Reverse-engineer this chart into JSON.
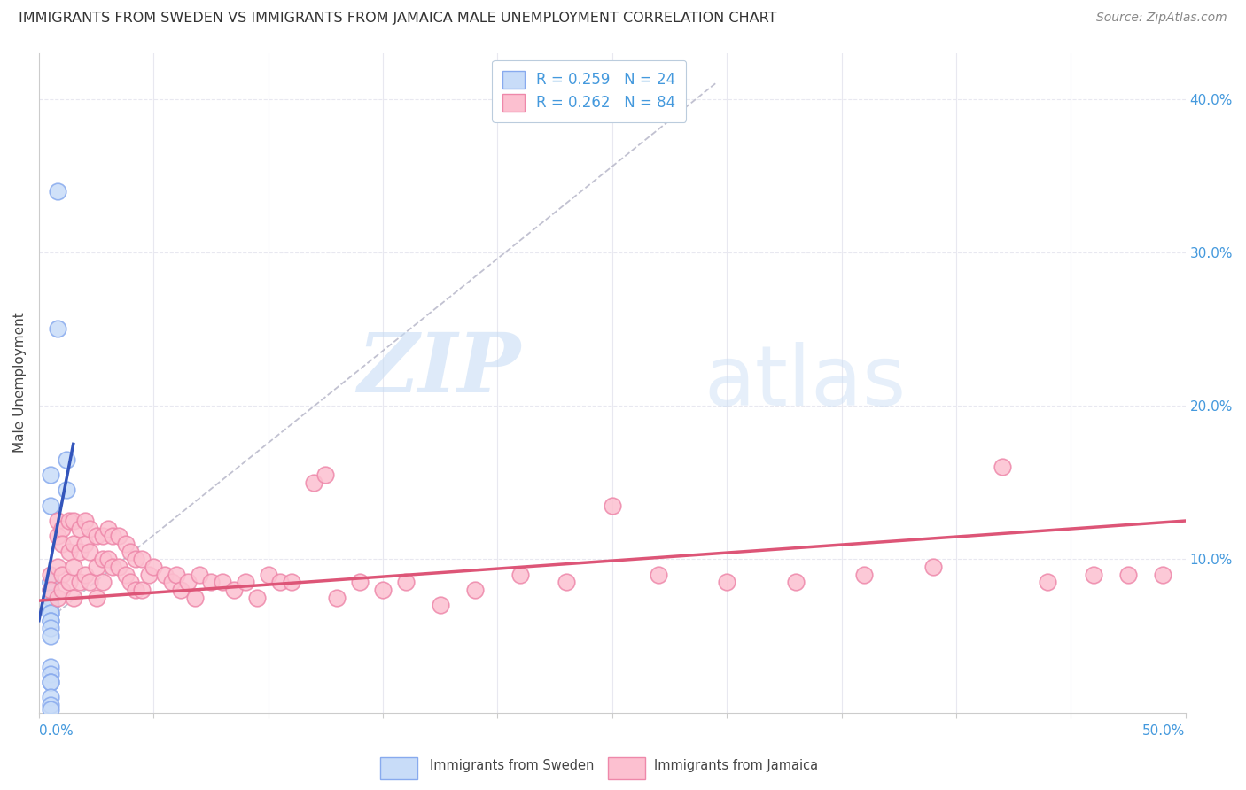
{
  "title": "IMMIGRANTS FROM SWEDEN VS IMMIGRANTS FROM JAMAICA MALE UNEMPLOYMENT CORRELATION CHART",
  "source": "Source: ZipAtlas.com",
  "ylabel": "Male Unemployment",
  "ylabel_right_ticks": [
    "10.0%",
    "20.0%",
    "30.0%",
    "40.0%"
  ],
  "ylabel_right_vals": [
    0.1,
    0.2,
    0.3,
    0.4
  ],
  "xlim": [
    0.0,
    0.5
  ],
  "ylim": [
    0.0,
    0.43
  ],
  "watermark_zip": "ZIP",
  "watermark_atlas": "atlas",
  "legend_sweden_r": "R = 0.259",
  "legend_sweden_n": "N = 24",
  "legend_jamaica_r": "R = 0.262",
  "legend_jamaica_n": "N = 84",
  "color_sweden_fill": "#c8dcf8",
  "color_sweden_edge": "#88aaee",
  "color_jamaica_fill": "#fcc0d0",
  "color_jamaica_edge": "#ee88aa",
  "color_text_blue": "#4499dd",
  "color_trend_sweden": "#3355bb",
  "color_trend_jamaica": "#dd5577",
  "color_dashed": "#bbbbcc",
  "color_grid": "#e8e8f0",
  "background_color": "#ffffff",
  "sweden_x": [
    0.008,
    0.008,
    0.012,
    0.012,
    0.005,
    0.005,
    0.005,
    0.005,
    0.005,
    0.005,
    0.005,
    0.005,
    0.005,
    0.005,
    0.005,
    0.005,
    0.005,
    0.005,
    0.005,
    0.005,
    0.005,
    0.005,
    0.005,
    0.005
  ],
  "sweden_y": [
    0.34,
    0.25,
    0.165,
    0.145,
    0.155,
    0.135,
    0.085,
    0.085,
    0.08,
    0.075,
    0.07,
    0.065,
    0.065,
    0.06,
    0.06,
    0.055,
    0.05,
    0.03,
    0.025,
    0.02,
    0.02,
    0.01,
    0.005,
    0.002
  ],
  "jamaica_x": [
    0.005,
    0.005,
    0.008,
    0.008,
    0.008,
    0.008,
    0.01,
    0.01,
    0.01,
    0.01,
    0.013,
    0.013,
    0.013,
    0.015,
    0.015,
    0.015,
    0.015,
    0.018,
    0.018,
    0.018,
    0.02,
    0.02,
    0.02,
    0.022,
    0.022,
    0.022,
    0.025,
    0.025,
    0.025,
    0.028,
    0.028,
    0.028,
    0.03,
    0.03,
    0.032,
    0.032,
    0.035,
    0.035,
    0.038,
    0.038,
    0.04,
    0.04,
    0.042,
    0.042,
    0.045,
    0.045,
    0.048,
    0.05,
    0.055,
    0.058,
    0.06,
    0.062,
    0.065,
    0.068,
    0.07,
    0.075,
    0.08,
    0.085,
    0.09,
    0.095,
    0.1,
    0.105,
    0.11,
    0.12,
    0.125,
    0.13,
    0.14,
    0.15,
    0.16,
    0.175,
    0.19,
    0.21,
    0.23,
    0.25,
    0.27,
    0.3,
    0.33,
    0.36,
    0.39,
    0.42,
    0.44,
    0.46,
    0.475,
    0.49
  ],
  "jamaica_y": [
    0.09,
    0.08,
    0.125,
    0.115,
    0.095,
    0.075,
    0.12,
    0.11,
    0.09,
    0.08,
    0.125,
    0.105,
    0.085,
    0.125,
    0.11,
    0.095,
    0.075,
    0.12,
    0.105,
    0.085,
    0.125,
    0.11,
    0.09,
    0.12,
    0.105,
    0.085,
    0.115,
    0.095,
    0.075,
    0.115,
    0.1,
    0.085,
    0.12,
    0.1,
    0.115,
    0.095,
    0.115,
    0.095,
    0.11,
    0.09,
    0.105,
    0.085,
    0.1,
    0.08,
    0.1,
    0.08,
    0.09,
    0.095,
    0.09,
    0.085,
    0.09,
    0.08,
    0.085,
    0.075,
    0.09,
    0.085,
    0.085,
    0.08,
    0.085,
    0.075,
    0.09,
    0.085,
    0.085,
    0.15,
    0.155,
    0.075,
    0.085,
    0.08,
    0.085,
    0.07,
    0.08,
    0.09,
    0.085,
    0.135,
    0.09,
    0.085,
    0.085,
    0.09,
    0.095,
    0.16,
    0.085,
    0.09,
    0.09,
    0.09
  ],
  "title_fontsize": 11.5,
  "source_fontsize": 10,
  "axis_label_fontsize": 11,
  "tick_fontsize": 11,
  "legend_fontsize": 12,
  "watermark_fontsize_zip": 68,
  "watermark_fontsize_atlas": 68
}
